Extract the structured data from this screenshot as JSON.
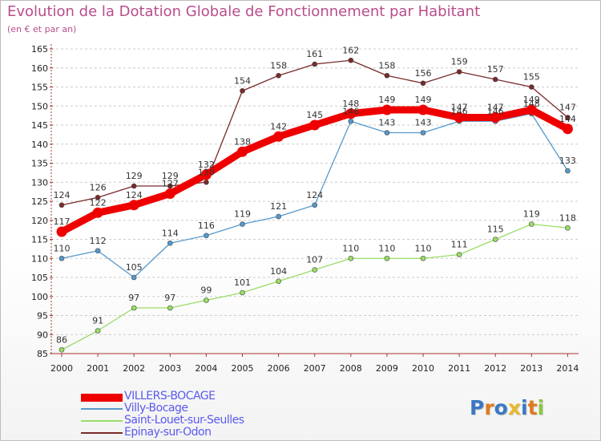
{
  "title": "Evolution de la Dotation Globale de Fonctionnement par Habitant",
  "subtitle": "(en € et par an)",
  "brand": "Proxiti",
  "chart_data": {
    "type": "line",
    "title": "Evolution de la Dotation Globale de Fonctionnement par Habitant",
    "subtitle": "(en € et par an)",
    "xlabel": "",
    "ylabel": "",
    "x": [
      2000,
      2001,
      2002,
      2003,
      2004,
      2005,
      2006,
      2007,
      2008,
      2009,
      2010,
      2011,
      2012,
      2013,
      2014
    ],
    "ylim": [
      85,
      165
    ],
    "yticks": [
      85,
      90,
      95,
      100,
      105,
      110,
      115,
      120,
      125,
      130,
      135,
      140,
      145,
      150,
      155,
      160,
      165
    ],
    "grid": "horizontal dashed",
    "legend_position": "bottom-left",
    "series": [
      {
        "name": "Epinay-sur-Odon",
        "color": "#7a2a2a",
        "values": [
          124,
          126,
          129,
          129,
          130,
          154,
          158,
          161,
          162,
          158,
          156,
          159,
          157,
          155,
          147
        ],
        "labels": [
          "124",
          "126",
          "129",
          "129",
          "130",
          "154",
          "158",
          "161",
          "162",
          "158",
          "156",
          "159",
          "157",
          "155",
          "147"
        ]
      },
      {
        "name": "Saint-Louet-sur-Seulles",
        "color": "#99dd66",
        "values": [
          86,
          91,
          97,
          97,
          99,
          101,
          104,
          107,
          110,
          110,
          110,
          111,
          115,
          119,
          118
        ],
        "labels": [
          "86",
          "91",
          "97",
          "97",
          "99",
          "101",
          "104",
          "107",
          "110",
          "110",
          "110",
          "111",
          "115",
          "119",
          "118"
        ]
      },
      {
        "name": "Villy-Bocage",
        "color": "#5599cc",
        "values": [
          110,
          112,
          105,
          114,
          116,
          119,
          121,
          124,
          146,
          143,
          143,
          146,
          146,
          148,
          133
        ],
        "labels": [
          "110",
          "112",
          "105",
          "114",
          "116",
          "119",
          "121",
          "124",
          "146",
          "143",
          "143",
          "146",
          "146",
          "148",
          "133"
        ]
      },
      {
        "name": "VILLERS-BOCAGE",
        "color": "#ee0000",
        "values": [
          117,
          122,
          124,
          127,
          132,
          138,
          142,
          145,
          148,
          149,
          149,
          147,
          147,
          149,
          144
        ],
        "labels": [
          "117",
          "122",
          "124",
          "127",
          "132",
          "138",
          "142",
          "145",
          "148",
          "149",
          "149",
          "147",
          "147",
          "149",
          "144"
        ]
      }
    ]
  },
  "legend": [
    {
      "label": "VILLERS-BOCAGE",
      "color": "#ee0000"
    },
    {
      "label": "Villy-Bocage",
      "color": "#5599cc"
    },
    {
      "label": "Saint-Louet-sur-Seulles",
      "color": "#99dd66"
    },
    {
      "label": "Epinay-sur-Odon",
      "color": "#7a2a2a"
    }
  ]
}
